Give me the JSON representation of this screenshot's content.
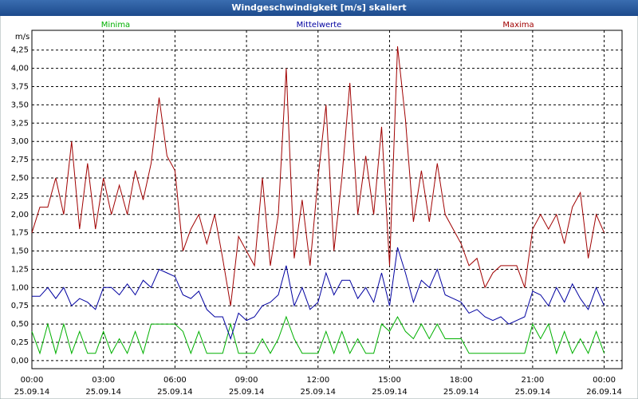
{
  "chart_data": {
    "type": "line",
    "title": "Windgeschwindigkeit [m/s] skaliert",
    "y_label": "m/s",
    "x": [
      0,
      20,
      40,
      60,
      80,
      100,
      120,
      140,
      160,
      180,
      200,
      220,
      240,
      260,
      280,
      300,
      320,
      340,
      360,
      380,
      400,
      420,
      440,
      460,
      480,
      500,
      520,
      540,
      560,
      580,
      600,
      620,
      640,
      660,
      680,
      700,
      720,
      740,
      760,
      780,
      800,
      820,
      840,
      860,
      880,
      900,
      920,
      940,
      960,
      980,
      1000,
      1020,
      1040,
      1060,
      1080,
      1100,
      1120,
      1140,
      1160,
      1180,
      1200,
      1220,
      1240,
      1260,
      1280,
      1300,
      1320,
      1340,
      1360,
      1380,
      1400,
      1420,
      1440
    ],
    "series": [
      {
        "name": "Minima",
        "color": "#00b000",
        "values": [
          0.4,
          0.1,
          0.5,
          0.1,
          0.5,
          0.1,
          0.4,
          0.1,
          0.1,
          0.4,
          0.1,
          0.3,
          0.1,
          0.4,
          0.1,
          0.5,
          0.5,
          0.5,
          0.5,
          0.4,
          0.1,
          0.4,
          0.1,
          0.1,
          0.1,
          0.5,
          0.1,
          0.1,
          0.1,
          0.3,
          0.1,
          0.3,
          0.6,
          0.3,
          0.1,
          0.1,
          0.1,
          0.4,
          0.1,
          0.4,
          0.1,
          0.3,
          0.1,
          0.1,
          0.5,
          0.4,
          0.6,
          0.4,
          0.3,
          0.5,
          0.3,
          0.5,
          0.3,
          0.3,
          0.3,
          0.1,
          0.1,
          0.1,
          0.1,
          0.1,
          0.1,
          0.1,
          0.1,
          0.5,
          0.3,
          0.5,
          0.1,
          0.4,
          0.1,
          0.3,
          0.1,
          0.4,
          0.1
        ]
      },
      {
        "name": "Mittelwerte",
        "color": "#0000a0",
        "values": [
          0.88,
          0.88,
          1.0,
          0.85,
          1.0,
          0.75,
          0.85,
          0.8,
          0.7,
          1.0,
          1.0,
          0.9,
          1.05,
          0.9,
          1.1,
          1.0,
          1.25,
          1.2,
          1.15,
          0.9,
          0.85,
          0.95,
          0.7,
          0.6,
          0.6,
          0.3,
          0.65,
          0.55,
          0.6,
          0.75,
          0.8,
          0.9,
          1.3,
          0.75,
          1.0,
          0.7,
          0.8,
          1.2,
          0.9,
          1.1,
          1.1,
          0.85,
          1.0,
          0.8,
          1.2,
          0.75,
          1.55,
          1.2,
          0.8,
          1.1,
          1.0,
          1.25,
          0.9,
          0.85,
          0.8,
          0.65,
          0.7,
          0.6,
          0.55,
          0.6,
          0.5,
          0.55,
          0.6,
          0.95,
          0.9,
          0.75,
          1.0,
          0.8,
          1.05,
          0.85,
          0.7,
          1.0,
          0.75
        ]
      },
      {
        "name": "Maxima",
        "color": "#a00000",
        "values": [
          1.75,
          2.1,
          2.1,
          2.5,
          2.0,
          3.0,
          1.8,
          2.7,
          1.8,
          2.5,
          2.0,
          2.4,
          2.0,
          2.6,
          2.2,
          2.7,
          3.6,
          2.8,
          2.6,
          1.5,
          1.8,
          2.0,
          1.6,
          2.0,
          1.4,
          0.75,
          1.7,
          1.5,
          1.3,
          2.5,
          1.3,
          2.0,
          4.0,
          1.4,
          2.2,
          1.3,
          2.5,
          3.5,
          1.5,
          2.5,
          3.8,
          2.0,
          2.8,
          2.0,
          3.2,
          1.3,
          4.3,
          3.3,
          1.9,
          2.6,
          1.9,
          2.7,
          2.0,
          1.8,
          1.6,
          1.3,
          1.4,
          1.0,
          1.2,
          1.3,
          1.3,
          1.3,
          1.0,
          1.8,
          2.0,
          1.8,
          2.0,
          1.6,
          2.1,
          2.3,
          1.4,
          2.0,
          1.75
        ]
      }
    ],
    "xlim": [
      0,
      1485
    ],
    "ylim": [
      -0.11,
      4.52
    ],
    "xticks": [
      {
        "value": 0,
        "label": "00:00",
        "date": "25.09.14"
      },
      {
        "value": 180,
        "label": "03:00",
        "date": "25.09.14"
      },
      {
        "value": 360,
        "label": "06:00",
        "date": "25.09.14"
      },
      {
        "value": 540,
        "label": "09:00",
        "date": "25.09.14"
      },
      {
        "value": 720,
        "label": "12:00",
        "date": "25.09.14"
      },
      {
        "value": 900,
        "label": "15:00",
        "date": "25.09.14"
      },
      {
        "value": 1080,
        "label": "18:00",
        "date": "25.09.14"
      },
      {
        "value": 1260,
        "label": "21:00",
        "date": "25.09.14"
      },
      {
        "value": 1440,
        "label": "00:00",
        "date": "26.09.14"
      }
    ],
    "yticks": [
      {
        "value": 0,
        "label": "0,00"
      },
      {
        "value": 0.25,
        "label": "0,25"
      },
      {
        "value": 0.5,
        "label": "0,50"
      },
      {
        "value": 0.75,
        "label": "0,75"
      },
      {
        "value": 1,
        "label": "1,00"
      },
      {
        "value": 1.25,
        "label": "1,25"
      },
      {
        "value": 1.5,
        "label": "1,50"
      },
      {
        "value": 1.75,
        "label": "1,75"
      },
      {
        "value": 2,
        "label": "2,00"
      },
      {
        "value": 2.25,
        "label": "2,25"
      },
      {
        "value": 2.5,
        "label": "2,50"
      },
      {
        "value": 2.75,
        "label": "2,75"
      },
      {
        "value": 3,
        "label": "3,00"
      },
      {
        "value": 3.25,
        "label": "3,25"
      },
      {
        "value": 3.5,
        "label": "3,50"
      },
      {
        "value": 3.75,
        "label": "3,75"
      },
      {
        "value": 4,
        "label": "4,00"
      },
      {
        "value": 4.25,
        "label": "4,25"
      }
    ],
    "grid": true
  }
}
